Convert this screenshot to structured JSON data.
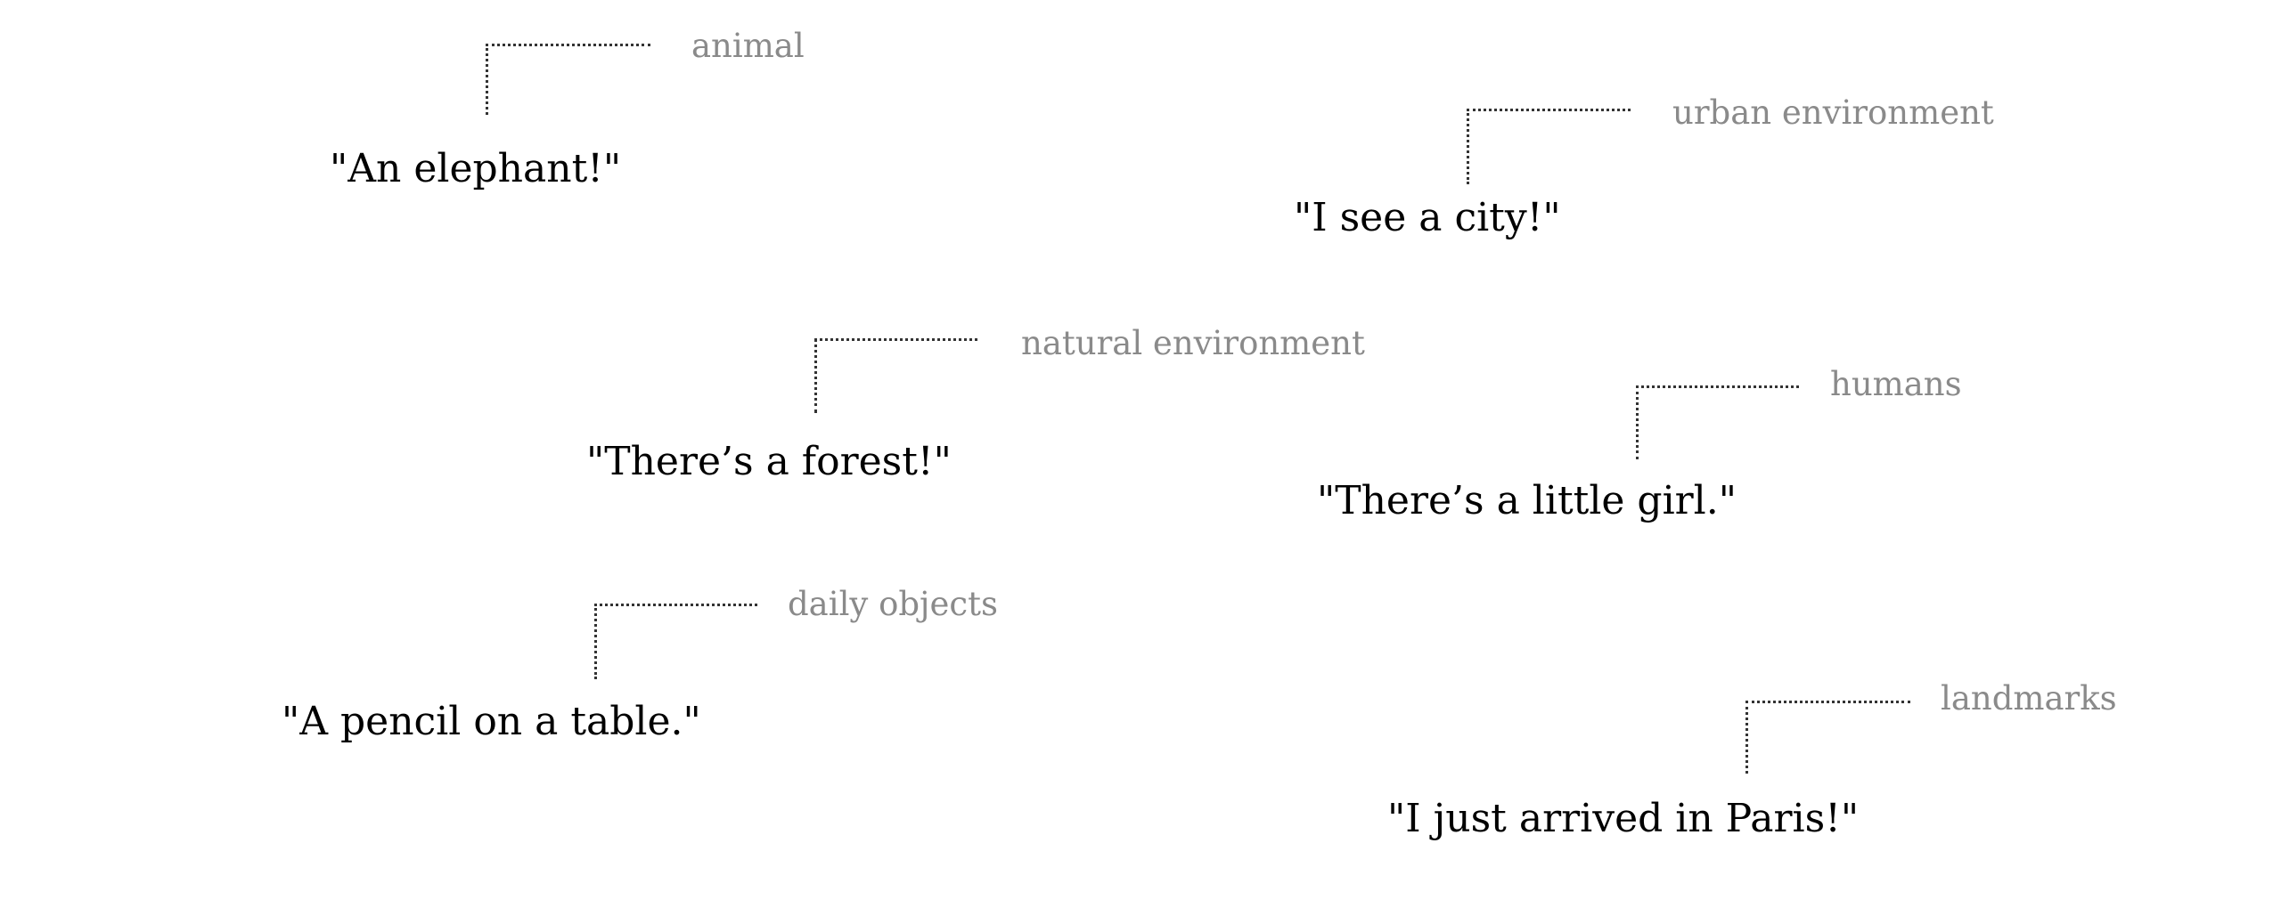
{
  "annotations": [
    {
      "quote": "\"An elephant!\"",
      "category": "animal"
    },
    {
      "quote": "\"I see a city!\"",
      "category": "urban environment"
    },
    {
      "quote": "\"There’s a forest!\"",
      "category": "natural environment"
    },
    {
      "quote": "\"There’s a little girl.\"",
      "category": "humans"
    },
    {
      "quote": "\"A pencil on a table.\"",
      "category": "daily objects"
    },
    {
      "quote": "\"I just arrived in Paris!\"",
      "category": "landmarks"
    }
  ],
  "colors": {
    "quote_text": "#000000",
    "category_text": "#8a8a8a",
    "leader_line": "#333333",
    "background": "#ffffff"
  }
}
